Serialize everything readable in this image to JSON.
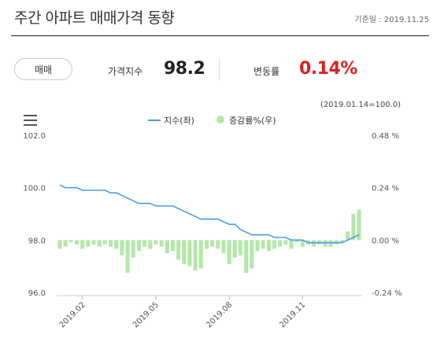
{
  "header": {
    "title": "주간 아파트 매매가격 동향",
    "ref_date": "기준일 : 2019.11.25"
  },
  "toggle": {
    "label": "매매"
  },
  "stats": {
    "index_label": "가격지수",
    "index_value": "98.2",
    "change_label": "변동률",
    "change_value": "0.14%"
  },
  "base_note": "(2019.01.14=100.0)",
  "colors": {
    "line": "#4a9de3",
    "bar": "#b3e8a8",
    "change": "#e02020"
  },
  "chart_data": {
    "type": "line",
    "legend": [
      {
        "name": "지수(좌)",
        "kind": "line"
      },
      {
        "name": "증감률%(우)",
        "kind": "bar"
      }
    ],
    "left_axis": {
      "ylim": [
        96.0,
        102.0
      ],
      "ticks": [
        "102.0",
        "100.0",
        "98.0",
        "96.0"
      ]
    },
    "right_axis": {
      "ylim": [
        -0.24,
        0.48
      ],
      "ticks": [
        "0.48 %",
        "0.24 %",
        "0.00 %",
        "-0.24 %"
      ]
    },
    "x_ticks": [
      "2019.02",
      "2019.05",
      "2019.08",
      "2019.11"
    ],
    "series": [
      {
        "name": "지수(좌)",
        "axis": "left",
        "values": [
          100.1,
          100.0,
          100.0,
          100.0,
          99.9,
          99.9,
          99.9,
          99.9,
          99.9,
          99.8,
          99.8,
          99.7,
          99.6,
          99.5,
          99.4,
          99.4,
          99.4,
          99.3,
          99.3,
          99.3,
          99.3,
          99.2,
          99.1,
          99.0,
          98.9,
          98.8,
          98.8,
          98.8,
          98.8,
          98.7,
          98.6,
          98.6,
          98.4,
          98.3,
          98.2,
          98.2,
          98.2,
          98.2,
          98.1,
          98.1,
          98.1,
          98.0,
          98.0,
          98.0,
          97.9,
          97.9,
          97.9,
          97.9,
          97.9,
          97.9,
          97.9,
          98.0,
          98.1,
          98.2
        ]
      },
      {
        "name": "증감률%(우)",
        "axis": "right",
        "values": [
          -0.04,
          -0.03,
          -0.01,
          -0.02,
          -0.04,
          -0.03,
          -0.02,
          -0.03,
          -0.02,
          -0.03,
          -0.04,
          -0.07,
          -0.15,
          -0.08,
          -0.05,
          -0.03,
          -0.04,
          -0.02,
          -0.03,
          -0.06,
          -0.05,
          -0.09,
          -0.11,
          -0.12,
          -0.14,
          -0.13,
          -0.04,
          -0.03,
          -0.04,
          -0.06,
          -0.11,
          -0.08,
          -0.07,
          -0.15,
          -0.13,
          -0.05,
          -0.04,
          -0.05,
          -0.04,
          -0.03,
          -0.02,
          -0.04,
          -0.01,
          -0.03,
          -0.02,
          -0.03,
          -0.02,
          -0.03,
          -0.03,
          -0.02,
          -0.01,
          0.04,
          0.12,
          0.14
        ]
      }
    ]
  }
}
